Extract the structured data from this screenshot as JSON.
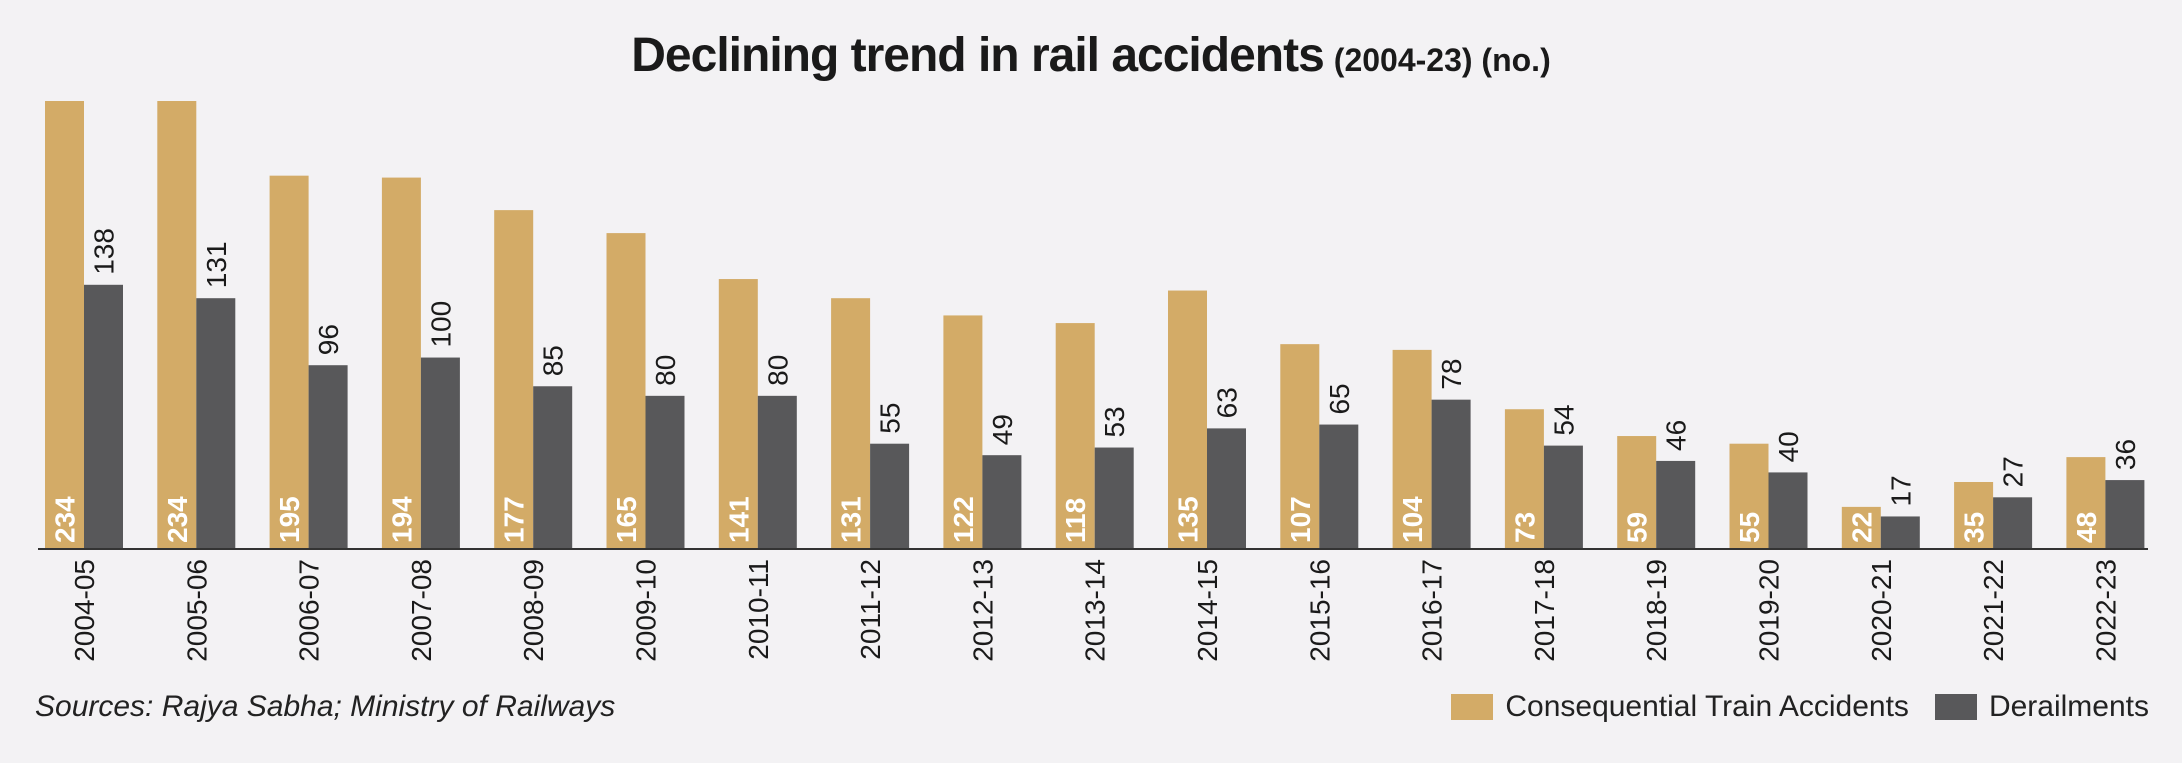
{
  "chart_data": {
    "type": "bar",
    "title": "Declining trend in rail accidents",
    "subtitle": "(2004-23) (no.)",
    "categories": [
      "2004-05",
      "2005-06",
      "2006-07",
      "2007-08",
      "2008-09",
      "2009-10",
      "2010-11",
      "2011-12",
      "2012-13",
      "2013-14",
      "2014-15",
      "2015-16",
      "2016-17",
      "2017-18",
      "2018-19",
      "2019-20",
      "2020-21",
      "2021-22",
      "2022-23"
    ],
    "series": [
      {
        "name": "Consequential Train Accidents",
        "color": "#d3ab67",
        "values": [
          234,
          234,
          195,
          194,
          177,
          165,
          141,
          131,
          122,
          118,
          135,
          107,
          104,
          73,
          59,
          55,
          22,
          35,
          48
        ]
      },
      {
        "name": "Derailments",
        "color": "#58585a",
        "values": [
          138,
          131,
          96,
          100,
          85,
          80,
          80,
          55,
          49,
          53,
          63,
          65,
          78,
          54,
          46,
          40,
          17,
          27,
          36
        ]
      }
    ],
    "ylim": [
      0,
      234
    ],
    "grid": false,
    "legend_position": "bottom-right",
    "source": "Sources: Rajya Sabha; Ministry of Railways"
  }
}
